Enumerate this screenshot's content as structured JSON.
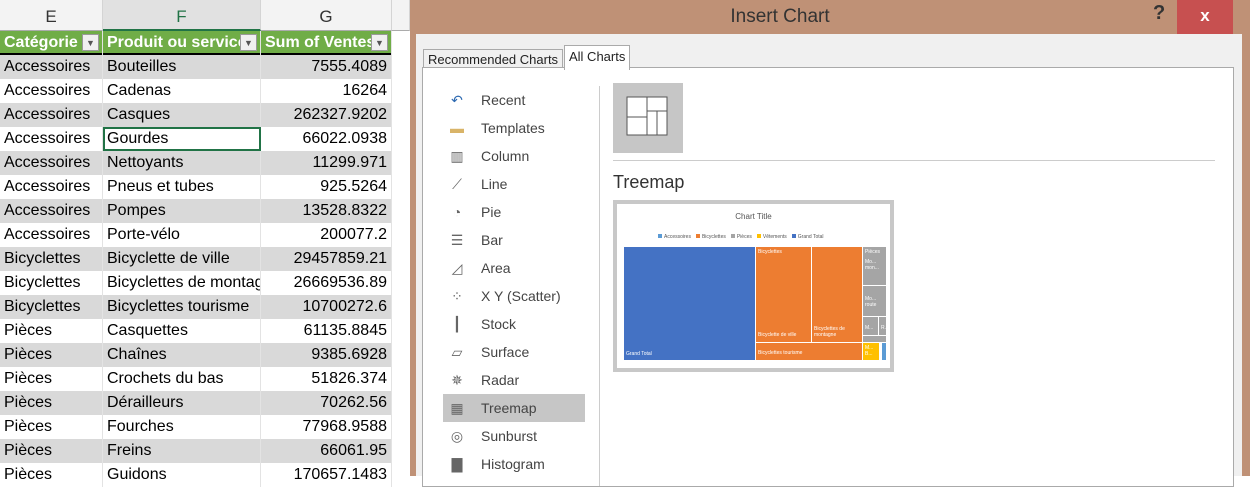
{
  "sheet": {
    "columns": [
      "E",
      "F",
      "G"
    ],
    "headers": [
      "Catégorie",
      "Produit ou service",
      "Sum of Ventes"
    ],
    "rows": [
      [
        "Accessoires",
        "Bouteilles",
        "7555.4089"
      ],
      [
        "Accessoires",
        "Cadenas",
        "16264"
      ],
      [
        "Accessoires",
        "Casques",
        "262327.9202"
      ],
      [
        "Accessoires",
        "Gourdes",
        "66022.0938"
      ],
      [
        "Accessoires",
        "Nettoyants",
        "11299.971"
      ],
      [
        "Accessoires",
        "Pneus et tubes",
        "925.5264"
      ],
      [
        "Accessoires",
        "Pompes",
        "13528.8322"
      ],
      [
        "Accessoires",
        "Porte-vélo",
        "200077.2"
      ],
      [
        "Bicyclettes",
        "Bicyclette de ville",
        "29457859.21"
      ],
      [
        "Bicyclettes",
        "Bicyclettes de montagne",
        "26669536.89"
      ],
      [
        "Bicyclettes",
        "Bicyclettes tourisme",
        "10700272.6"
      ],
      [
        "Pièces",
        "Casquettes",
        "61135.8845"
      ],
      [
        "Pièces",
        "Chaînes",
        "9385.6928"
      ],
      [
        "Pièces",
        "Crochets du bas",
        "51826.374"
      ],
      [
        "Pièces",
        "Dérailleurs",
        "70262.56"
      ],
      [
        "Pièces",
        "Fourches",
        "77968.9588"
      ],
      [
        "Pièces",
        "Freins",
        "66061.95"
      ],
      [
        "Pièces",
        "Guidons",
        "170657.1483"
      ]
    ]
  },
  "dialog": {
    "title": "Insert Chart",
    "help": "?",
    "close": "x",
    "tabs": [
      "Recommended Charts",
      "All Charts"
    ],
    "nav": [
      {
        "label": "Recent",
        "icon": "↶"
      },
      {
        "label": "Templates",
        "icon": "▬"
      },
      {
        "label": "Column",
        "icon": "▥"
      },
      {
        "label": "Line",
        "icon": "⟋"
      },
      {
        "label": "Pie",
        "icon": "◔"
      },
      {
        "label": "Bar",
        "icon": "☰"
      },
      {
        "label": "Area",
        "icon": "◿"
      },
      {
        "label": "X Y (Scatter)",
        "icon": "⁘"
      },
      {
        "label": "Stock",
        "icon": "┃"
      },
      {
        "label": "Surface",
        "icon": "▱"
      },
      {
        "label": "Radar",
        "icon": "✵"
      },
      {
        "label": "Treemap",
        "icon": "▦"
      },
      {
        "label": "Sunburst",
        "icon": "◎"
      },
      {
        "label": "Histogram",
        "icon": "▇"
      }
    ],
    "selected": "Treemap",
    "chart_heading": "Treemap",
    "preview": {
      "title": "Chart Title",
      "legend": [
        {
          "name": "Accessoires",
          "color": "#5b9bd5"
        },
        {
          "name": "Bicyclettes",
          "color": "#ed7d31"
        },
        {
          "name": "Pièces",
          "color": "#a5a5a5"
        },
        {
          "name": "Vêtements",
          "color": "#ffc000"
        },
        {
          "name": "Grand Total",
          "color": "#4472c4"
        }
      ],
      "labels": {
        "grand_total": "Grand Total",
        "bicyclettes": "Bicyclettes",
        "ville": "Bicyclette de ville",
        "montagne": "Bicyclettes de montagne",
        "tourisme": "Bicyclettes tourisme",
        "pieces": "Pièces",
        "mo1": "Mo... mon...",
        "mo2": "Mo... route",
        "m": "M...",
        "r": "R...",
        "m2": "M...",
        "b": "B..."
      }
    }
  }
}
